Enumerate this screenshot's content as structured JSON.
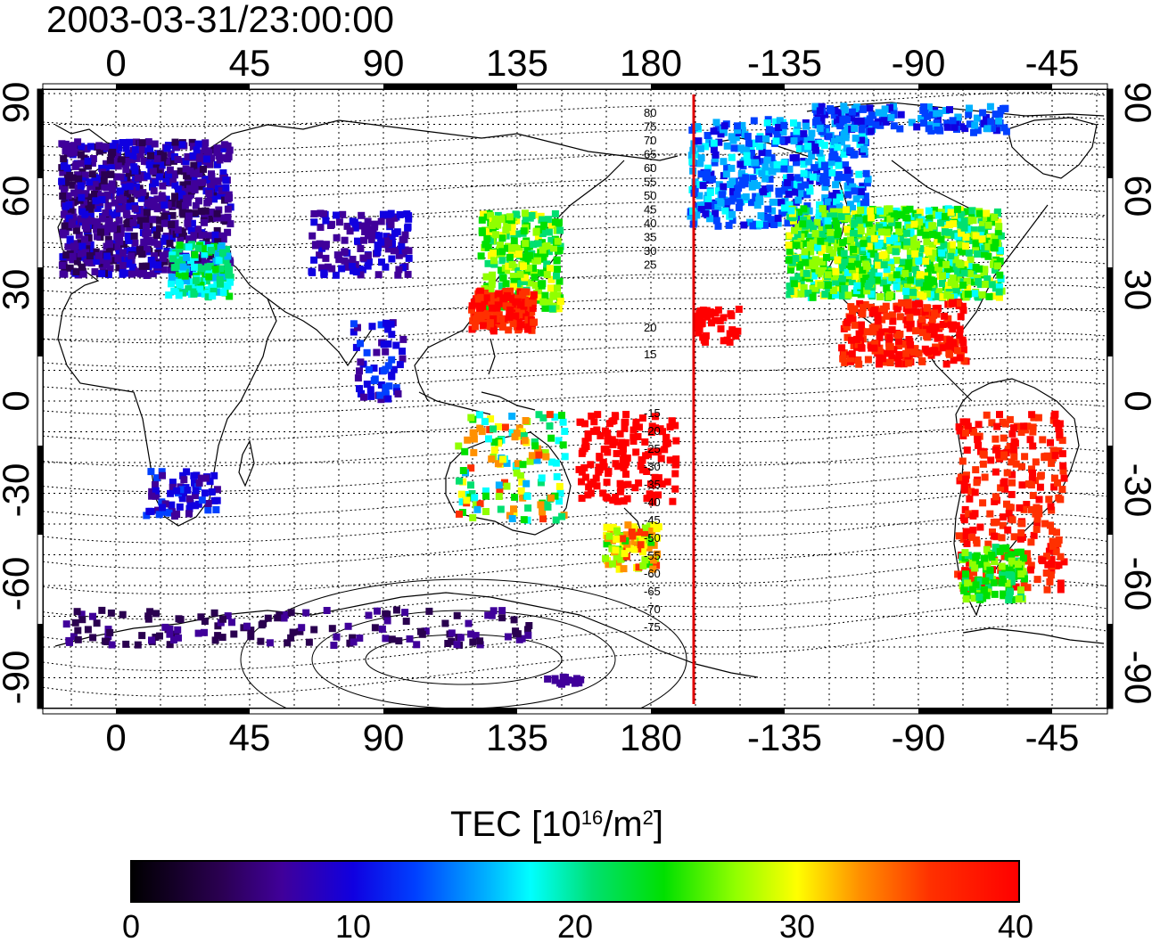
{
  "title": "2003-03-31/23:00:00",
  "map": {
    "lon_ticks": [
      "0",
      "45",
      "90",
      "135",
      "180",
      "-135",
      "-90",
      "-45"
    ],
    "lat_ticks": [
      "90",
      "60",
      "30",
      "0",
      "-30",
      "-60",
      "-90"
    ],
    "contour_labels_north": [
      "80",
      "75",
      "70",
      "65",
      "60",
      "55",
      "50",
      "45",
      "40",
      "35",
      "30",
      "25",
      "20",
      "15"
    ],
    "contour_labels_south": [
      "-15",
      "-20",
      "-25",
      "-30",
      "-35",
      "-40",
      "-45",
      "-50",
      "-55",
      "-60",
      "-65",
      "-70",
      "-75"
    ],
    "meridian_line_color": "#e00000"
  },
  "colorbar": {
    "title_prefix": "TEC  [10",
    "title_exp1": "16",
    "title_mid": "/m",
    "title_exp2": "2",
    "title_suffix": "]",
    "ticks": [
      "0",
      "10",
      "20",
      "30",
      "40"
    ],
    "colors": [
      "#000000",
      "#3a0070",
      "#4a00c0",
      "#0000ff",
      "#0080ff",
      "#00ffff",
      "#00e040",
      "#00ff00",
      "#c0ff00",
      "#ffff00",
      "#ff8000",
      "#ff2000",
      "#ff0000"
    ]
  }
}
